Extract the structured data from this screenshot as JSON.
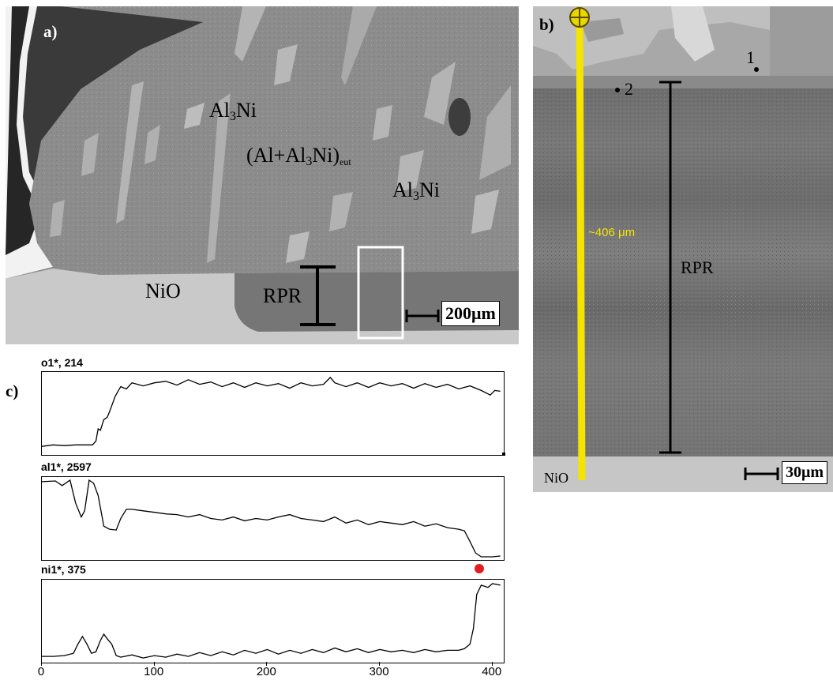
{
  "panel_a": {
    "letter": "a)",
    "phases": [
      {
        "main": "Al",
        "sub": "3",
        "tail": "Ni"
      },
      {
        "main": "Al",
        "sub": "3",
        "tail": "Ni"
      }
    ],
    "eutectic": {
      "pre": "(Al+Al",
      "sub": "3",
      "mid": "Ni)",
      "sub2": "eut"
    },
    "nio": "NiO",
    "rpr": "RPR",
    "scale": "200μm"
  },
  "panel_b": {
    "letter": "b)",
    "point1": "1",
    "point2": "2",
    "line_length": "~406 μm",
    "rpr": "RPR",
    "nio": "NiO",
    "scale": "30μm"
  },
  "panel_c": {
    "letter": "c)",
    "profiles": [
      {
        "title": "o1*, 214"
      },
      {
        "title": "al1*, 2597"
      },
      {
        "title": "ni1*, 375"
      }
    ],
    "ticks": [
      "0",
      "100",
      "200",
      "300",
      "400"
    ]
  },
  "chart_data": [
    {
      "type": "line",
      "title": "o1*, 214",
      "xlim": [
        0,
        410
      ],
      "ylim": [
        0,
        1
      ],
      "x": [
        0,
        10,
        20,
        30,
        40,
        45,
        48,
        50,
        52,
        55,
        58,
        60,
        62,
        65,
        68,
        70,
        75,
        80,
        90,
        100,
        110,
        120,
        130,
        140,
        150,
        160,
        170,
        180,
        190,
        200,
        210,
        220,
        230,
        240,
        250,
        256,
        260,
        270,
        280,
        290,
        300,
        310,
        320,
        330,
        340,
        350,
        360,
        370,
        380,
        390,
        398,
        402,
        407
      ],
      "y": [
        0.07,
        0.09,
        0.08,
        0.09,
        0.09,
        0.09,
        0.14,
        0.3,
        0.28,
        0.42,
        0.45,
        0.52,
        0.6,
        0.72,
        0.8,
        0.85,
        0.82,
        0.9,
        0.86,
        0.9,
        0.92,
        0.87,
        0.94,
        0.88,
        0.91,
        0.85,
        0.9,
        0.84,
        0.9,
        0.86,
        0.89,
        0.83,
        0.9,
        0.86,
        0.88,
        0.97,
        0.9,
        0.85,
        0.9,
        0.84,
        0.9,
        0.86,
        0.89,
        0.83,
        0.89,
        0.84,
        0.88,
        0.82,
        0.86,
        0.8,
        0.74,
        0.8,
        0.79
      ]
    },
    {
      "type": "line",
      "title": "al1*, 2597",
      "xlim": [
        0,
        410
      ],
      "ylim": [
        0,
        1
      ],
      "x": [
        0,
        12,
        18,
        25,
        30,
        35,
        38,
        42,
        46,
        50,
        55,
        60,
        66,
        70,
        75,
        80,
        90,
        100,
        110,
        120,
        130,
        140,
        150,
        160,
        170,
        180,
        190,
        200,
        210,
        220,
        230,
        240,
        250,
        260,
        270,
        280,
        290,
        300,
        310,
        320,
        330,
        340,
        350,
        360,
        370,
        375,
        380,
        385,
        390,
        395,
        400,
        407
      ],
      "y": [
        0.98,
        0.99,
        0.93,
        1.0,
        0.7,
        0.52,
        0.6,
        1.0,
        0.96,
        0.8,
        0.4,
        0.36,
        0.35,
        0.5,
        0.62,
        0.62,
        0.6,
        0.58,
        0.56,
        0.55,
        0.52,
        0.55,
        0.5,
        0.48,
        0.52,
        0.47,
        0.5,
        0.48,
        0.52,
        0.55,
        0.5,
        0.48,
        0.46,
        0.52,
        0.44,
        0.48,
        0.42,
        0.46,
        0.44,
        0.42,
        0.46,
        0.4,
        0.43,
        0.38,
        0.36,
        0.34,
        0.2,
        0.05,
        0.0,
        0.0,
        0.0,
        0.01
      ]
    },
    {
      "type": "line",
      "title": "ni1*, 375",
      "xlim": [
        0,
        410
      ],
      "ylim": [
        0,
        1
      ],
      "x": [
        0,
        10,
        20,
        28,
        32,
        36,
        40,
        44,
        48,
        52,
        55,
        58,
        62,
        66,
        70,
        80,
        90,
        100,
        110,
        120,
        130,
        140,
        150,
        160,
        170,
        180,
        190,
        200,
        210,
        220,
        230,
        240,
        250,
        260,
        270,
        280,
        290,
        300,
        310,
        320,
        330,
        340,
        350,
        360,
        370,
        375,
        380,
        383,
        386,
        390,
        396,
        400,
        407
      ],
      "y": [
        0.04,
        0.04,
        0.05,
        0.08,
        0.2,
        0.3,
        0.2,
        0.08,
        0.1,
        0.25,
        0.33,
        0.27,
        0.2,
        0.05,
        0.03,
        0.06,
        0.02,
        0.05,
        0.03,
        0.07,
        0.04,
        0.09,
        0.05,
        0.1,
        0.06,
        0.12,
        0.08,
        0.13,
        0.07,
        0.12,
        0.08,
        0.13,
        0.09,
        0.15,
        0.1,
        0.14,
        0.09,
        0.13,
        0.1,
        0.12,
        0.09,
        0.13,
        0.1,
        0.12,
        0.12,
        0.14,
        0.2,
        0.4,
        0.85,
        0.97,
        0.94,
        0.99,
        0.97
      ]
    }
  ]
}
